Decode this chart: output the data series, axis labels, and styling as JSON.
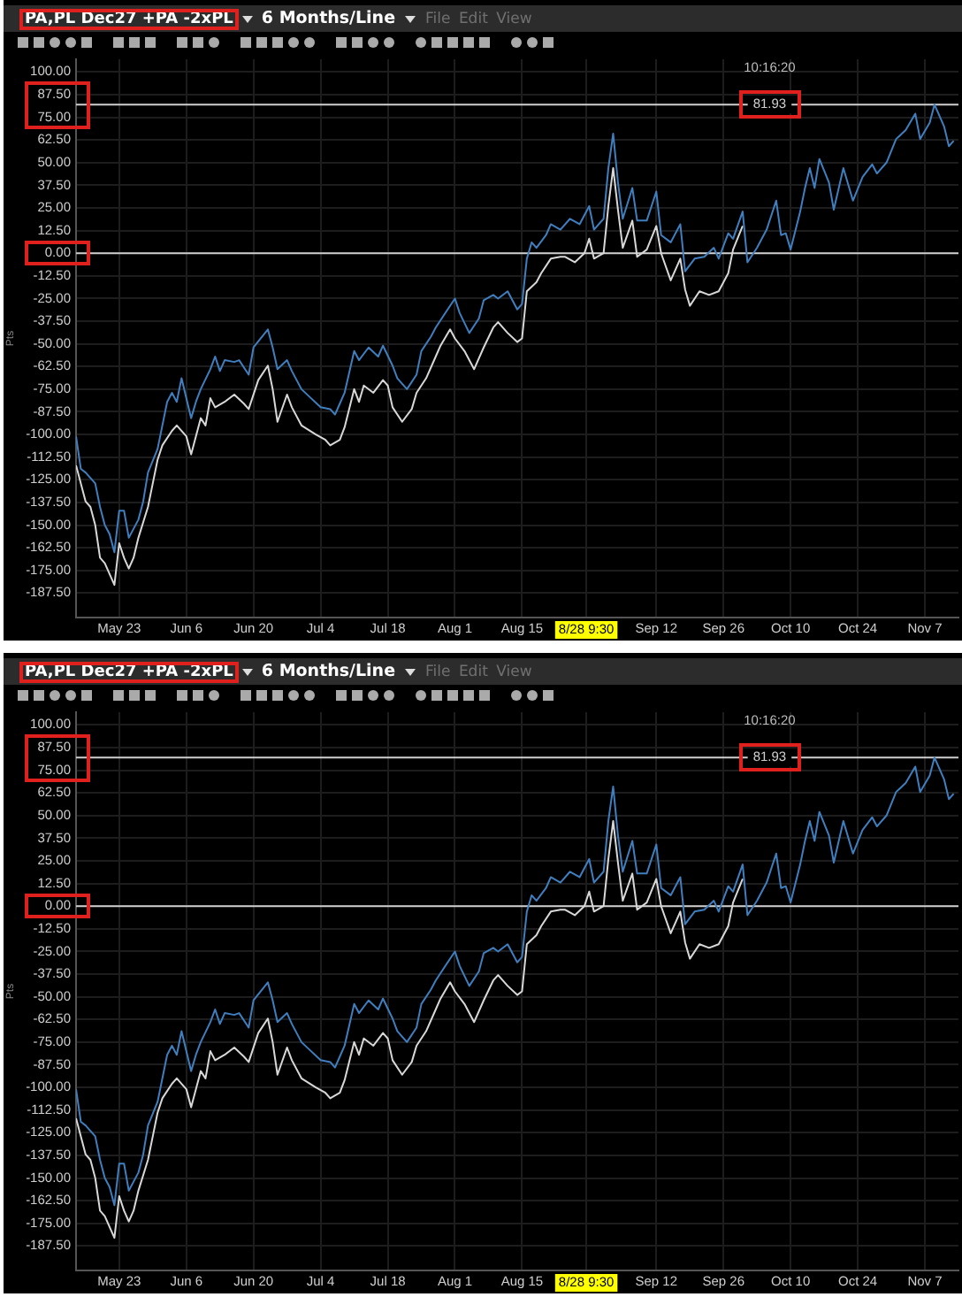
{
  "chart_data": [
    {
      "type": "line",
      "title": "PA,PL Dec27 +PA -2xPL",
      "subtitle": "6 Months/Line",
      "ylabel": "Pts",
      "annotations": [
        "File Edit View",
        "10:16:20"
      ],
      "series": [
        {
          "color": "#3f7fbf",
          "x": [
            "--05-14",
            "--05-15",
            "--05-16",
            "--05-18",
            "--05-19",
            "--05-20",
            "--05-21",
            "--05-22",
            "--05-23",
            "--05-24",
            "--05-25",
            "--05-26",
            "--05-27",
            "--05-28",
            "--05-29",
            "--05-31",
            "--06-01",
            "--06-02",
            "--06-03",
            "--06-04",
            "--06-05",
            "--06-07",
            "--06-08",
            "--06-09",
            "--06-11",
            "--06-12",
            "--06-13",
            "--06-14",
            "--06-16",
            "--06-17",
            "--06-19",
            "--06-20",
            "--06-23",
            "--06-24",
            "--06-25",
            "--06-27",
            "--06-28",
            "--06-30",
            "--07-02",
            "--07-04",
            "--07-06",
            "--07-07",
            "--07-08",
            "--07-09",
            "--07-11",
            "--07-12",
            "--07-14",
            "--07-16",
            "--07-17",
            "--07-19",
            "--07-20",
            "--07-22",
            "--07-24",
            "--07-25",
            "--07-27",
            "--07-28",
            "--07-30",
            "--08-01",
            "--08-02",
            "--08-04",
            "--08-06",
            "--08-07",
            "--08-09",
            "--08-10",
            "--08-12",
            "--08-14",
            "--08-15",
            "--08-16",
            "--08-17",
            "--08-18",
            "--08-20",
            "--08-21",
            "--08-23",
            "--08-25",
            "--08-27",
            "--08-29",
            "--08-30",
            "--09-01",
            "--09-02",
            "--09-03",
            "--09-04",
            "--09-05",
            "--09-07",
            "--09-08",
            "--09-10",
            "--09-12",
            "--09-13",
            "--09-15",
            "--09-17",
            "--09-18",
            "--09-20",
            "--09-22",
            "--09-24",
            "--09-25",
            "--09-27",
            "--09-28",
            "--09-30",
            "--10-01",
            "--10-03",
            "--10-05",
            "--10-07",
            "--10-08",
            "--10-09",
            "--10-10",
            "--10-12",
            "--10-13",
            "--10-14",
            "--10-15",
            "--10-16",
            "--10-18",
            "--10-19",
            "--10-21",
            "--10-23",
            "--10-25",
            "--10-27",
            "--10-28",
            "--10-30",
            "--11-01",
            "--11-03",
            "--11-05",
            "--11-06",
            "--11-08",
            "--11-09",
            "--11-11",
            "--11-12",
            "--11-13"
          ],
          "values": [
            -101,
            -119,
            -121,
            -127,
            -140,
            -150,
            -155,
            -165,
            -142,
            -142,
            -157,
            -152,
            -147,
            -137,
            -121,
            -108,
            -95,
            -82,
            -77,
            -82,
            -69,
            -91,
            -82,
            -75,
            -64,
            -57,
            -65,
            -59,
            -60,
            -59,
            -67,
            -52,
            -42,
            -52,
            -64,
            -59,
            -65,
            -75,
            -80,
            -85,
            -86,
            -89,
            -83,
            -77,
            -54,
            -59,
            -52,
            -57,
            -51,
            -62,
            -69,
            -75,
            -67,
            -54,
            -46,
            -41,
            -33,
            -25,
            -33,
            -44,
            -36,
            -26,
            -23,
            -25,
            -21,
            -31,
            -28,
            -3,
            6,
            3,
            10,
            16,
            13,
            19,
            16,
            26,
            13,
            19,
            47,
            66,
            39,
            19,
            36,
            18,
            18,
            34,
            10,
            6,
            16,
            -10,
            -3,
            -2,
            3,
            -3,
            11,
            8,
            23,
            -5,
            3,
            13,
            29,
            10,
            11,
            2,
            23,
            36,
            47,
            36,
            52,
            39,
            24,
            47,
            29,
            42,
            49,
            44,
            50,
            63,
            68,
            77,
            63,
            72,
            82,
            70,
            59,
            62
          ]
        },
        {
          "color": "#d8d8d8",
          "x": [
            "--05-14",
            "--05-16",
            "--05-17",
            "--05-18",
            "--05-19",
            "--05-20",
            "--05-22",
            "--05-23",
            "--05-24",
            "--05-25",
            "--05-26",
            "--05-27",
            "--05-29",
            "--05-30",
            "--05-31",
            "--06-01",
            "--06-03",
            "--06-04",
            "--06-06",
            "--06-07",
            "--06-09",
            "--06-10",
            "--06-11",
            "--06-12",
            "--06-14",
            "--06-16",
            "--06-18",
            "--06-19",
            "--06-21",
            "--06-23",
            "--06-24",
            "--06-25",
            "--06-27",
            "--06-28",
            "--06-30",
            "--07-03",
            "--07-05",
            "--07-06",
            "--07-08",
            "--07-09",
            "--07-11",
            "--07-12",
            "--07-13",
            "--07-15",
            "--07-17",
            "--07-18",
            "--07-19",
            "--07-21",
            "--07-23",
            "--07-24",
            "--07-26",
            "--07-28",
            "--07-29",
            "--07-31",
            "--08-01",
            "--08-03",
            "--08-05",
            "--08-07",
            "--08-09",
            "--08-10",
            "--08-12",
            "--08-14",
            "--08-15",
            "--08-16",
            "--08-18",
            "--08-19",
            "--08-21",
            "--08-23",
            "--08-24",
            "--08-26",
            "--08-28",
            "--08-29",
            "--08-30",
            "--09-01",
            "--09-02",
            "--09-03",
            "--09-04",
            "--09-05",
            "--09-07",
            "--09-08",
            "--09-10",
            "--09-12",
            "--09-13",
            "--09-15",
            "--09-17",
            "--09-18",
            "--09-19",
            "--09-21",
            "--09-23",
            "--09-25",
            "--09-27",
            "--09-28",
            "--09-30"
          ],
          "values": [
            -117,
            -137,
            -140,
            -150,
            -168,
            -171,
            -183,
            -160,
            -168,
            -174,
            -168,
            -157,
            -140,
            -127,
            -114,
            -106,
            -98,
            -95,
            -101,
            -111,
            -91,
            -95,
            -80,
            -85,
            -82,
            -78,
            -83,
            -86,
            -70,
            -62,
            -75,
            -93,
            -78,
            -85,
            -95,
            -100,
            -103,
            -106,
            -103,
            -96,
            -75,
            -82,
            -73,
            -77,
            -70,
            -73,
            -85,
            -93,
            -86,
            -77,
            -69,
            -57,
            -51,
            -42,
            -47,
            -54,
            -64,
            -52,
            -41,
            -38,
            -44,
            -49,
            -47,
            -21,
            -16,
            -11,
            -3,
            -2,
            -2,
            -5,
            0,
            8,
            -3,
            0,
            26,
            47,
            24,
            3,
            18,
            -2,
            2,
            15,
            0,
            -15,
            -3,
            -20,
            -29,
            -21,
            -23,
            -21,
            -11,
            2,
            15
          ]
        }
      ],
      "xlim": [
        "--05-14",
        "--11-14"
      ],
      "xticks": [
        {
          "value": "--05-23",
          "label": "May 23"
        },
        {
          "value": "--06-06",
          "label": "Jun 6"
        },
        {
          "value": "--06-20",
          "label": "Jun 20"
        },
        {
          "value": "--07-04",
          "label": "Jul 4"
        },
        {
          "value": "--07-18",
          "label": "Jul 18"
        },
        {
          "value": "--08-01",
          "label": "Aug 1"
        },
        {
          "value": "--08-15",
          "label": "Aug 15"
        },
        {
          "value": "--08-28T09:30",
          "label": "8/28 9:30"
        },
        {
          "value": "--09-12",
          "label": "Sep 12"
        },
        {
          "value": "--09-26",
          "label": "Sep 26"
        },
        {
          "value": "--10-10",
          "label": "Oct 10"
        },
        {
          "value": "--10-24",
          "label": "Oct 24"
        },
        {
          "value": "--11-07",
          "label": "Nov 7"
        }
      ],
      "ylim": [
        -201,
        107
      ],
      "yticks": [
        {
          "value": 100,
          "label": "100.00"
        },
        {
          "value": 87.5,
          "label": "87.50"
        },
        {
          "value": 75,
          "label": "75.00"
        },
        {
          "value": 62.5,
          "label": "62.50"
        },
        {
          "value": 50,
          "label": "50.00"
        },
        {
          "value": 37.5,
          "label": "37.50"
        },
        {
          "value": 25,
          "label": "25.00"
        },
        {
          "value": 12.5,
          "label": "12.50"
        },
        {
          "value": 0,
          "label": "0.00"
        },
        {
          "value": -12.5,
          "label": "-12.50"
        },
        {
          "value": -25,
          "label": "-25.00"
        },
        {
          "value": -37.5,
          "label": "-37.50"
        },
        {
          "value": -50,
          "label": "-50.00"
        },
        {
          "value": -62.5,
          "label": "-62.50"
        },
        {
          "value": -75,
          "label": "-75.00"
        },
        {
          "value": -87.5,
          "label": "-87.50"
        },
        {
          "value": -100,
          "label": "-100.00"
        },
        {
          "value": -112.5,
          "label": "-112.50"
        },
        {
          "value": -125,
          "label": "-125.00"
        },
        {
          "value": -137.5,
          "label": "-137.50"
        },
        {
          "value": -150,
          "label": "-150.00"
        },
        {
          "value": -162.5,
          "label": "-162.50"
        },
        {
          "value": -175,
          "label": "-175.00"
        },
        {
          "value": -187.5,
          "label": "-187.50"
        }
      ],
      "ref_lines": [
        {
          "axis": "y",
          "value": 81.93,
          "label": "81.93",
          "color": "#cfcfcf"
        },
        {
          "axis": "y",
          "value": 0,
          "color": "#cfcfcf"
        }
      ],
      "grid": true
    },
    {
      "type": "line",
      "title": "PA,PL Dec27 +PA -2xPL",
      "subtitle": "6 Months/Line",
      "ylabel": "Pts",
      "annotations": [
        "File Edit View",
        "10:16:20"
      ],
      "series": [
        {
          "color": "#3f7fbf",
          "x": [
            "--05-14",
            "--05-15",
            "--05-16",
            "--05-18",
            "--05-19",
            "--05-20",
            "--05-21",
            "--05-22",
            "--05-23",
            "--05-24",
            "--05-25",
            "--05-26",
            "--05-27",
            "--05-28",
            "--05-29",
            "--05-31",
            "--06-01",
            "--06-02",
            "--06-03",
            "--06-04",
            "--06-05",
            "--06-07",
            "--06-08",
            "--06-09",
            "--06-11",
            "--06-12",
            "--06-13",
            "--06-14",
            "--06-16",
            "--06-17",
            "--06-19",
            "--06-20",
            "--06-23",
            "--06-24",
            "--06-25",
            "--06-27",
            "--06-28",
            "--06-30",
            "--07-02",
            "--07-04",
            "--07-06",
            "--07-07",
            "--07-08",
            "--07-09",
            "--07-11",
            "--07-12",
            "--07-14",
            "--07-16",
            "--07-17",
            "--07-19",
            "--07-20",
            "--07-22",
            "--07-24",
            "--07-25",
            "--07-27",
            "--07-28",
            "--07-30",
            "--08-01",
            "--08-02",
            "--08-04",
            "--08-06",
            "--08-07",
            "--08-09",
            "--08-10",
            "--08-12",
            "--08-14",
            "--08-15",
            "--08-16",
            "--08-17",
            "--08-18",
            "--08-20",
            "--08-21",
            "--08-23",
            "--08-25",
            "--08-27",
            "--08-29",
            "--08-30",
            "--09-01",
            "--09-02",
            "--09-03",
            "--09-04",
            "--09-05",
            "--09-07",
            "--09-08",
            "--09-10",
            "--09-12",
            "--09-13",
            "--09-15",
            "--09-17",
            "--09-18",
            "--09-20",
            "--09-22",
            "--09-24",
            "--09-25",
            "--09-27",
            "--09-28",
            "--09-30",
            "--10-01",
            "--10-03",
            "--10-05",
            "--10-07",
            "--10-08",
            "--10-09",
            "--10-10",
            "--10-12",
            "--10-13",
            "--10-14",
            "--10-15",
            "--10-16",
            "--10-18",
            "--10-19",
            "--10-21",
            "--10-23",
            "--10-25",
            "--10-27",
            "--10-28",
            "--10-30",
            "--11-01",
            "--11-03",
            "--11-05",
            "--11-06",
            "--11-08",
            "--11-09",
            "--11-11",
            "--11-12",
            "--11-13"
          ],
          "values": [
            -101,
            -119,
            -121,
            -127,
            -140,
            -150,
            -155,
            -165,
            -142,
            -142,
            -157,
            -152,
            -147,
            -137,
            -121,
            -108,
            -95,
            -82,
            -77,
            -82,
            -69,
            -91,
            -82,
            -75,
            -64,
            -57,
            -65,
            -59,
            -60,
            -59,
            -67,
            -52,
            -42,
            -52,
            -64,
            -59,
            -65,
            -75,
            -80,
            -85,
            -86,
            -89,
            -83,
            -77,
            -54,
            -59,
            -52,
            -57,
            -51,
            -62,
            -69,
            -75,
            -67,
            -54,
            -46,
            -41,
            -33,
            -25,
            -33,
            -44,
            -36,
            -26,
            -23,
            -25,
            -21,
            -31,
            -28,
            -3,
            6,
            3,
            10,
            16,
            13,
            19,
            16,
            26,
            13,
            19,
            47,
            66,
            39,
            19,
            36,
            18,
            18,
            34,
            10,
            6,
            16,
            -10,
            -3,
            -2,
            3,
            -3,
            11,
            8,
            23,
            -5,
            3,
            13,
            29,
            10,
            11,
            2,
            23,
            36,
            47,
            36,
            52,
            39,
            24,
            47,
            29,
            42,
            49,
            44,
            50,
            63,
            68,
            77,
            63,
            72,
            82,
            70,
            59,
            62
          ]
        },
        {
          "color": "#d8d8d8",
          "x": [
            "--05-14",
            "--05-16",
            "--05-17",
            "--05-18",
            "--05-19",
            "--05-20",
            "--05-22",
            "--05-23",
            "--05-24",
            "--05-25",
            "--05-26",
            "--05-27",
            "--05-29",
            "--05-30",
            "--05-31",
            "--06-01",
            "--06-03",
            "--06-04",
            "--06-06",
            "--06-07",
            "--06-09",
            "--06-10",
            "--06-11",
            "--06-12",
            "--06-14",
            "--06-16",
            "--06-18",
            "--06-19",
            "--06-21",
            "--06-23",
            "--06-24",
            "--06-25",
            "--06-27",
            "--06-28",
            "--06-30",
            "--07-03",
            "--07-05",
            "--07-06",
            "--07-08",
            "--07-09",
            "--07-11",
            "--07-12",
            "--07-13",
            "--07-15",
            "--07-17",
            "--07-18",
            "--07-19",
            "--07-21",
            "--07-23",
            "--07-24",
            "--07-26",
            "--07-28",
            "--07-29",
            "--07-31",
            "--08-01",
            "--08-03",
            "--08-05",
            "--08-07",
            "--08-09",
            "--08-10",
            "--08-12",
            "--08-14",
            "--08-15",
            "--08-16",
            "--08-18",
            "--08-19",
            "--08-21",
            "--08-23",
            "--08-24",
            "--08-26",
            "--08-28",
            "--08-29",
            "--08-30",
            "--09-01",
            "--09-02",
            "--09-03",
            "--09-04",
            "--09-05",
            "--09-07",
            "--09-08",
            "--09-10",
            "--09-12",
            "--09-13",
            "--09-15",
            "--09-17",
            "--09-18",
            "--09-19",
            "--09-21",
            "--09-23",
            "--09-25",
            "--09-27",
            "--09-28",
            "--09-30"
          ],
          "values": [
            -117,
            -137,
            -140,
            -150,
            -168,
            -171,
            -183,
            -160,
            -168,
            -174,
            -168,
            -157,
            -140,
            -127,
            -114,
            -106,
            -98,
            -95,
            -101,
            -111,
            -91,
            -95,
            -80,
            -85,
            -82,
            -78,
            -83,
            -86,
            -70,
            -62,
            -75,
            -93,
            -78,
            -85,
            -95,
            -100,
            -103,
            -106,
            -103,
            -96,
            -75,
            -82,
            -73,
            -77,
            -70,
            -73,
            -85,
            -93,
            -86,
            -77,
            -69,
            -57,
            -51,
            -42,
            -47,
            -54,
            -64,
            -52,
            -41,
            -38,
            -44,
            -49,
            -47,
            -21,
            -16,
            -11,
            -3,
            -2,
            -2,
            -5,
            0,
            8,
            -3,
            0,
            26,
            47,
            24,
            3,
            18,
            -2,
            2,
            15,
            0,
            -15,
            -3,
            -20,
            -29,
            -21,
            -23,
            -21,
            -11,
            2,
            15
          ]
        }
      ],
      "xlim": [
        "--05-14",
        "--11-14"
      ],
      "xticks": [
        {
          "value": "--05-23",
          "label": "May 23"
        },
        {
          "value": "--06-06",
          "label": "Jun 6"
        },
        {
          "value": "--06-20",
          "label": "Jun 20"
        },
        {
          "value": "--07-04",
          "label": "Jul 4"
        },
        {
          "value": "--07-18",
          "label": "Jul 18"
        },
        {
          "value": "--08-01",
          "label": "Aug 1"
        },
        {
          "value": "--08-15",
          "label": "Aug 15"
        },
        {
          "value": "--08-28T09:30",
          "label": "8/28 9:30"
        },
        {
          "value": "--09-12",
          "label": "Sep 12"
        },
        {
          "value": "--09-26",
          "label": "Sep 26"
        },
        {
          "value": "--10-10",
          "label": "Oct 10"
        },
        {
          "value": "--10-24",
          "label": "Oct 24"
        },
        {
          "value": "--11-07",
          "label": "Nov 7"
        }
      ],
      "ylim": [
        -201,
        107
      ],
      "yticks": [
        {
          "value": 100,
          "label": "100.00"
        },
        {
          "value": 87.5,
          "label": "87.50"
        },
        {
          "value": 75,
          "label": "75.00"
        },
        {
          "value": 62.5,
          "label": "62.50"
        },
        {
          "value": 50,
          "label": "50.00"
        },
        {
          "value": 37.5,
          "label": "37.50"
        },
        {
          "value": 25,
          "label": "25.00"
        },
        {
          "value": 12.5,
          "label": "12.50"
        },
        {
          "value": 0,
          "label": "0.00"
        },
        {
          "value": -12.5,
          "label": "-12.50"
        },
        {
          "value": -25,
          "label": "-25.00"
        },
        {
          "value": -37.5,
          "label": "-37.50"
        },
        {
          "value": -50,
          "label": "-50.00"
        },
        {
          "value": -62.5,
          "label": "-62.50"
        },
        {
          "value": -75,
          "label": "-75.00"
        },
        {
          "value": -87.5,
          "label": "-87.50"
        },
        {
          "value": -100,
          "label": "-100.00"
        },
        {
          "value": -112.5,
          "label": "-112.50"
        },
        {
          "value": -125,
          "label": "-125.00"
        },
        {
          "value": -137.5,
          "label": "-137.50"
        },
        {
          "value": -150,
          "label": "-150.00"
        },
        {
          "value": -162.5,
          "label": "-162.50"
        },
        {
          "value": -175,
          "label": "-175.00"
        },
        {
          "value": -187.5,
          "label": "-187.50"
        }
      ],
      "ref_lines": [
        {
          "axis": "y",
          "value": 81.93,
          "label": "81.93",
          "color": "#cfcfcf"
        },
        {
          "axis": "y",
          "value": 0,
          "color": "#cfcfcf"
        }
      ],
      "grid": true
    }
  ]
}
